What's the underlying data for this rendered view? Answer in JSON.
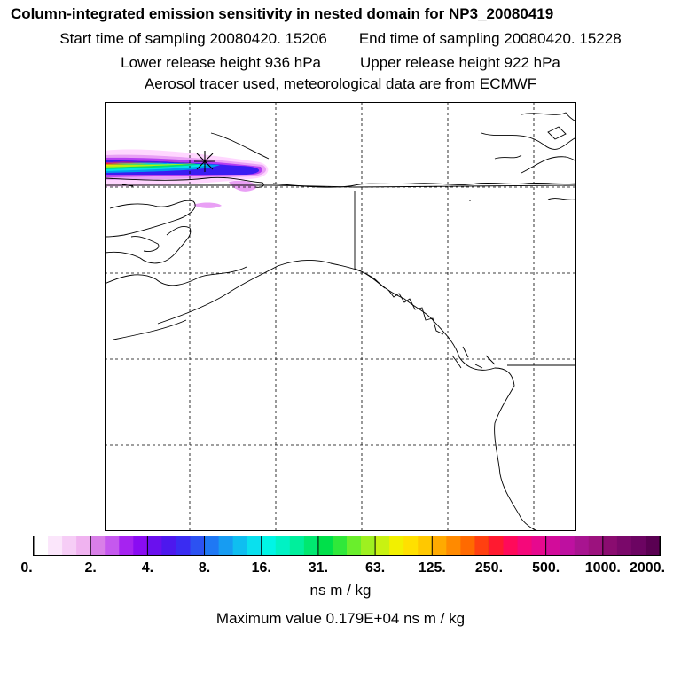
{
  "header": {
    "title": "Column-integrated emission sensitivity in nested domain for NP3_20080419",
    "start_label": "Start time of sampling 20080420. 15206",
    "end_label": "End time of sampling 20080420. 15228",
    "lower_label": "Lower release height  936 hPa",
    "upper_label": "Upper release height  922 hPa",
    "tracer_line": "Aerosol tracer used, meteorological data are from ECMWF"
  },
  "colorbar": {
    "tick_labels": [
      "0.",
      "2.",
      "4.",
      "8.",
      "16.",
      "31.",
      "63.",
      "125.",
      "250.",
      "500.",
      "1000.",
      "2000."
    ],
    "colors": [
      "#ffffff",
      "#fbe6fb",
      "#f6cdf6",
      "#f0b3f0",
      "#d97fe8",
      "#c558ee",
      "#a623f0",
      "#8a0cf2",
      "#6a10ee",
      "#4d18ee",
      "#3a2cf2",
      "#2c52f2",
      "#1f78f4",
      "#179cf2",
      "#0fbef0",
      "#0ae0ee",
      "#00f5e6",
      "#00f2c4",
      "#00ef9c",
      "#00e870",
      "#00e04a",
      "#30e83a",
      "#6aee2c",
      "#9ef020",
      "#c8f212",
      "#f2f000",
      "#ffe000",
      "#ffc800",
      "#ffaa00",
      "#ff8a00",
      "#ff6a00",
      "#ff4010",
      "#ff1a30",
      "#ff0a5a",
      "#f5087a",
      "#e6098e",
      "#d20c9a",
      "#be10a0",
      "#a81490",
      "#9c127e",
      "#8a0c70",
      "#7a086a",
      "#6c0462",
      "#5a0052"
    ],
    "unit": "ns m / kg",
    "max_label": "Maximum value  0.179E+04 ns m / kg"
  },
  "map": {
    "release_marker": "release-location-star",
    "plume_colors": [
      "#ffd6ff",
      "#e9a0f5",
      "#b53ef2",
      "#3a1cf2",
      "#009dee",
      "#00e6e6",
      "#00e070",
      "#b6f010",
      "#ffd800",
      "#ff8800",
      "#ff1430",
      "#e0088e"
    ]
  }
}
